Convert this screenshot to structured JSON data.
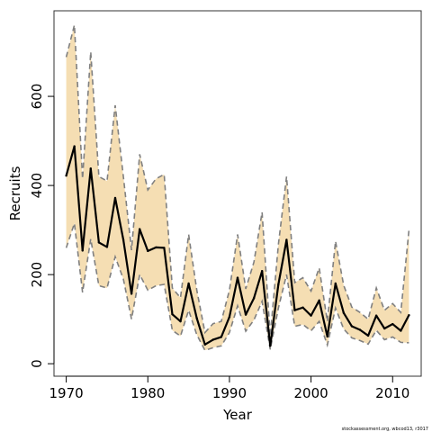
{
  "chart_data": {
    "type": "line",
    "xlabel": "Year",
    "ylabel": "Recruits",
    "xlim": [
      1968.5,
      2013.5
    ],
    "ylim": [
      -28,
      792
    ],
    "x_ticks": [
      1970,
      1980,
      1990,
      2000,
      2010
    ],
    "y_ticks": [
      0,
      200,
      400,
      600
    ],
    "x_tick_labels": [
      "1970",
      "1980",
      "1990",
      "2000",
      "2010"
    ],
    "y_tick_labels": [
      "0",
      "200",
      "400",
      "600"
    ],
    "footnote": "stockassessment.org, wbcod13, r3017",
    "colors": {
      "band": "#f5deb3",
      "median": "#000000",
      "bounds": "#808080",
      "frame": "#333333"
    },
    "series": [
      {
        "x": [
          1970,
          1971,
          1972,
          1973,
          1974,
          1975,
          1976,
          1977,
          1978,
          1979,
          1980,
          1981,
          1982,
          1983,
          1984,
          1985,
          1986,
          1987,
          1988,
          1989,
          1990,
          1991,
          1992,
          1993,
          1994,
          1995,
          1996,
          1997,
          1998,
          1999,
          2000,
          2001,
          2002,
          2003,
          2004,
          2005,
          2006,
          2007,
          2008,
          2009,
          2010,
          2011,
          2012
        ],
        "median": [
          422,
          488,
          254,
          438,
          272,
          262,
          372,
          278,
          157,
          302,
          253,
          261,
          260,
          111,
          95,
          180,
          102,
          43,
          54,
          60,
          105,
          193,
          110,
          147,
          208,
          40,
          178,
          278,
          120,
          126,
          108,
          142,
          61,
          180,
          114,
          84,
          76,
          63,
          108,
          79,
          89,
          74,
          109
        ],
        "lower": [
          260,
          315,
          160,
          280,
          175,
          170,
          240,
          190,
          100,
          200,
          165,
          175,
          178,
          75,
          62,
          120,
          65,
          30,
          36,
          40,
          70,
          130,
          73,
          98,
          140,
          32,
          125,
          200,
          84,
          88,
          74,
          95,
          42,
          125,
          78,
          58,
          52,
          44,
          75,
          54,
          60,
          48,
          47
        ],
        "upper": [
          688,
          760,
          415,
          700,
          420,
          410,
          580,
          420,
          255,
          470,
          390,
          415,
          425,
          170,
          148,
          290,
          165,
          70,
          90,
          95,
          165,
          290,
          168,
          228,
          340,
          62,
          268,
          420,
          182,
          193,
          163,
          215,
          95,
          275,
          176,
          127,
          115,
          100,
          170,
          120,
          135,
          115,
          300
        ]
      }
    ]
  }
}
